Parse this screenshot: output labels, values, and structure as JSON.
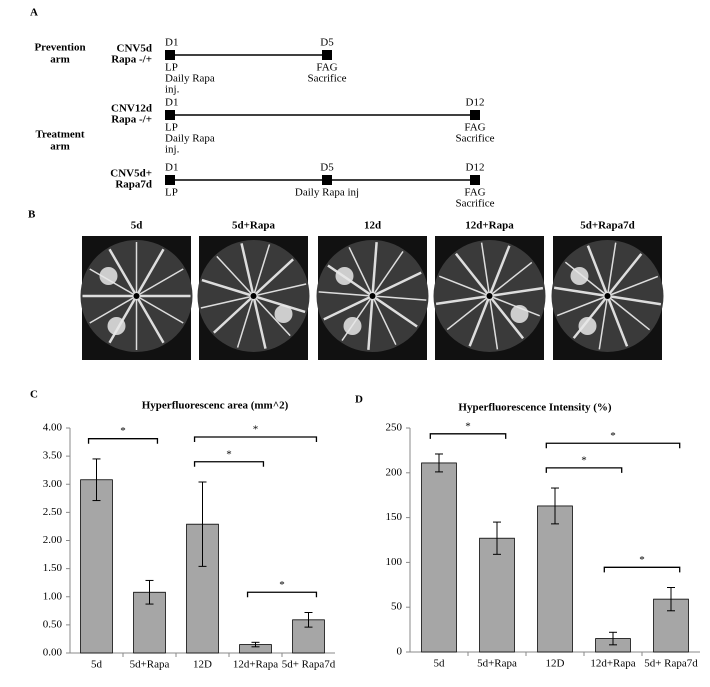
{
  "timeline": {
    "label": "A",
    "arm_labels": [
      [
        "Prevention",
        "arm"
      ],
      [
        "Treatment",
        "arm"
      ]
    ],
    "rows": [
      {
        "name": [
          "CNV5d",
          "Rapa -/+"
        ],
        "markers": [
          {
            "top": "D1",
            "bottom": [
              "LP",
              "Daily Rapa",
              "inj."
            ]
          },
          {
            "top": "D5",
            "bottom": [
              "FAG",
              "Sacrifice"
            ]
          }
        ]
      },
      {
        "name": [
          "CNV12d",
          "Rapa -/+"
        ],
        "markers": [
          {
            "top": "D1",
            "bottom": [
              "LP",
              "Daily Rapa",
              "inj."
            ]
          },
          {
            "top": "D12",
            "bottom": [
              "FAG",
              "Sacrifice"
            ]
          }
        ]
      },
      {
        "name": [
          "CNV5d+",
          "Rapa7d"
        ],
        "markers": [
          {
            "top": "D1",
            "bottom": [
              "LP"
            ]
          },
          {
            "top": "D5",
            "bottom": [
              "Daily Rapa inj"
            ]
          },
          {
            "top": "D12",
            "bottom": [
              "FAG",
              "Sacrifice"
            ]
          }
        ]
      }
    ]
  },
  "images": {
    "label": "B",
    "titles": [
      "5d",
      "5d+Rapa",
      "12d",
      "12d+Rapa",
      "5d+Rapa7d"
    ]
  },
  "chart_data": [
    {
      "type": "bar",
      "label": "C",
      "title": "Hyperfluorescenc area (mm^2)",
      "categories": [
        "5d",
        "5d+Rapa",
        "12D",
        "12d+Rapa",
        "5d+ Rapa7d"
      ],
      "values": [
        3.08,
        1.08,
        2.29,
        0.15,
        0.59
      ],
      "errors": [
        0.37,
        0.21,
        0.75,
        0.04,
        0.13
      ],
      "color": "#a6a6a6",
      "ylim": [
        0,
        4
      ],
      "yticks": [
        {
          "value": 0,
          "label": "0.00"
        },
        {
          "value": 0.5,
          "label": "0.50"
        },
        {
          "value": 1,
          "label": "1.00"
        },
        {
          "value": 1.5,
          "label": "1.50"
        },
        {
          "value": 2,
          "label": "2.00"
        },
        {
          "value": 2.5,
          "label": "2.50"
        },
        {
          "value": 3,
          "label": "3.00"
        },
        {
          "value": 3.5,
          "label": "3.50"
        },
        {
          "value": 4,
          "label": "4.00"
        }
      ],
      "significance": [
        {
          "text": "*",
          "between": [
            "5d",
            "5d+Rapa"
          ]
        },
        {
          "text": "*",
          "between": [
            "12D",
            "12d+Rapa"
          ]
        },
        {
          "text": "*",
          "between": [
            "12D",
            "5d+ Rapa7d"
          ]
        },
        {
          "text": "*",
          "between": [
            "12d+Rapa",
            "5d+ Rapa7d"
          ]
        }
      ]
    },
    {
      "type": "bar",
      "label": "D",
      "title": "Hyperfluorescence Intensity (%)",
      "categories": [
        "5d",
        "5d+Rapa",
        "12D",
        "12d+Rapa",
        "5d+ Rapa7d"
      ],
      "values": [
        211,
        127,
        163,
        15,
        59
      ],
      "errors": [
        10,
        18,
        20,
        7,
        13
      ],
      "color": "#a6a6a6",
      "ylim": [
        0,
        250
      ],
      "yticks": [
        0,
        50,
        100,
        150,
        200,
        250
      ],
      "significance": [
        {
          "text": "*",
          "between": [
            "5d",
            "5d+Rapa"
          ]
        },
        {
          "text": "*",
          "between": [
            "12D",
            "12d+Rapa"
          ]
        },
        {
          "text": "*",
          "between": [
            "12D",
            "5d+ Rapa7d"
          ]
        },
        {
          "text": "*",
          "between": [
            "12d+Rapa",
            "5d+ Rapa7d"
          ]
        }
      ]
    }
  ]
}
